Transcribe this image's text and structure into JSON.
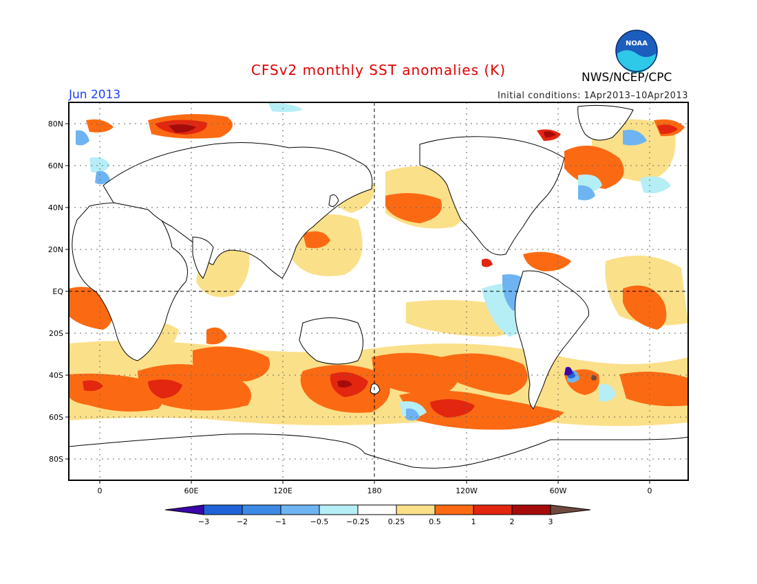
{
  "header": {
    "title": "CFSv2 monthly SST anomalies (K)",
    "month": "Jun 2013",
    "initial_conditions": "Initial conditions: 1Apr2013–10Apr2013",
    "agency": "NWS/NCEP/CPC",
    "logo_text": "NOAA"
  },
  "map": {
    "lat_labels": [
      "80N",
      "60N",
      "40N",
      "20N",
      "EQ",
      "20S",
      "40S",
      "60S",
      "80S"
    ],
    "lon_labels": [
      "0",
      "60E",
      "120E",
      "180",
      "120W",
      "60W",
      "0"
    ]
  },
  "colorbar": {
    "tick_labels": [
      "−3",
      "−2",
      "−1",
      "−0.5",
      "−0.25",
      "0.25",
      "0.5",
      "1",
      "2",
      "3"
    ],
    "colors": [
      "#3b05a8",
      "#1f63d6",
      "#3c8ae6",
      "#6eb4f2",
      "#b6eef5",
      "#ffffff",
      "#fbe08a",
      "#fb6a13",
      "#e2260f",
      "#a50b0b",
      "#6e4a3f"
    ]
  },
  "colors": {
    "title": "#e00000",
    "month": "#1a3cff"
  }
}
